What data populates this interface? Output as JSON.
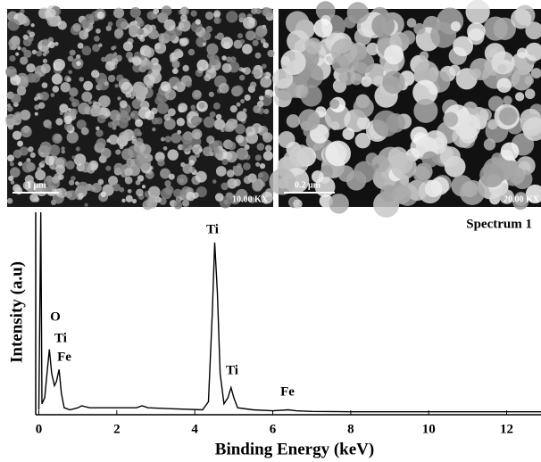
{
  "images": [
    {
      "scale_bar": "1 μm",
      "magnification": "10.00 KX"
    },
    {
      "scale_bar": "0.2 μm",
      "magnification": "20.00 KX"
    }
  ],
  "chart_data": {
    "type": "line",
    "title": "Spectrum 1",
    "x_label": "Binding Energy (keV)",
    "y_label": "Intensity (a.u)",
    "xlim": [
      0,
      12.9
    ],
    "ylim": [
      0,
      100
    ],
    "xticks": [
      0,
      2,
      4,
      6,
      8,
      10,
      12
    ],
    "color": "#000000",
    "x": [
      0,
      0.05,
      0.08,
      0.15,
      0.2,
      0.27,
      0.33,
      0.4,
      0.45,
      0.52,
      0.58,
      0.65,
      0.8,
      1.0,
      1.1,
      1.3,
      1.5,
      2,
      2.5,
      2.65,
      2.8,
      3.5,
      4.2,
      4.35,
      4.45,
      4.51,
      4.58,
      4.65,
      4.75,
      4.85,
      4.93,
      5.0,
      5.1,
      5.5,
      6.0,
      6.4,
      6.6,
      7,
      8,
      9,
      10,
      11,
      12,
      12.9
    ],
    "values": [
      2,
      100,
      5,
      8,
      18,
      32,
      20,
      14,
      16,
      22,
      10,
      3,
      2,
      3,
      4,
      3,
      3,
      3,
      3,
      4,
      3,
      2.5,
      2,
      6,
      50,
      85,
      60,
      20,
      5,
      8,
      13,
      8,
      3,
      2,
      1.5,
      2,
      1.5,
      1.2,
      1,
      1,
      1,
      1,
      1,
      1
    ],
    "annotations": [
      "O",
      "Ti",
      "Fe",
      "Ti",
      "Ti",
      "Fe"
    ]
  }
}
